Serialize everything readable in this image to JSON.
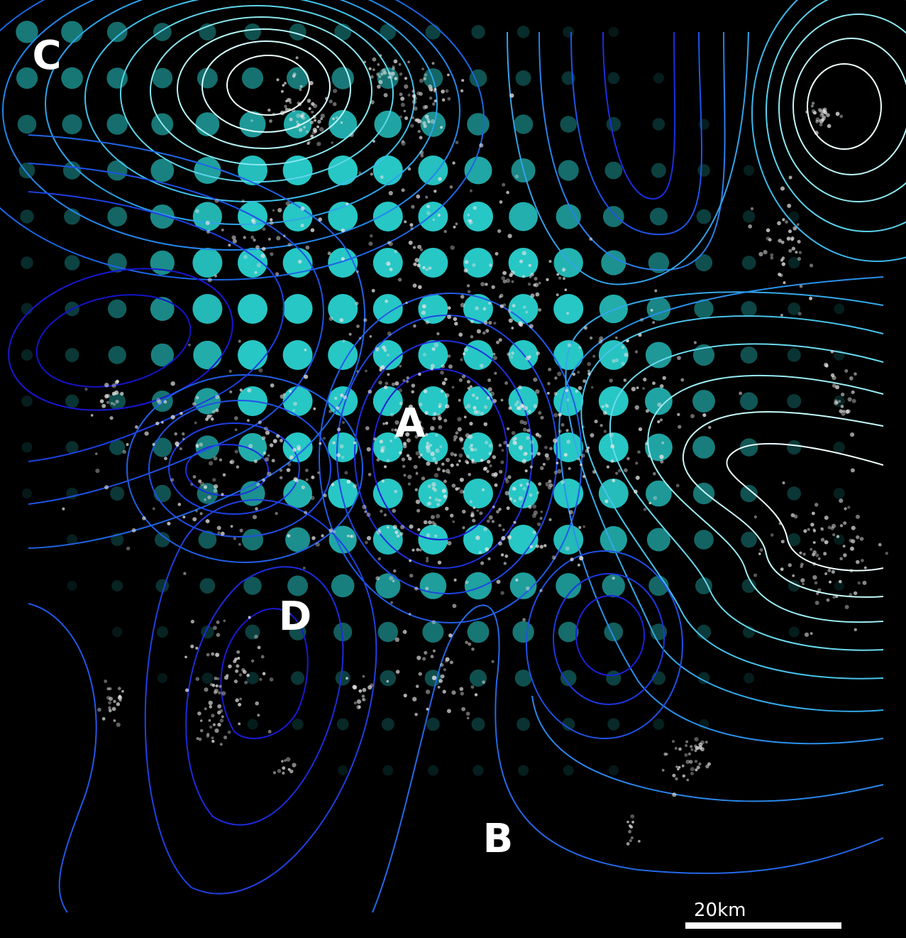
{
  "map": {
    "labels": {
      "A": "A",
      "B": "B",
      "C": "C",
      "D": "D"
    },
    "scale_bar": {
      "label": "20km"
    },
    "colors": {
      "background": "#000000",
      "grid_dot": "#2ad8d6",
      "cluster_point": "#e6e6e6",
      "contour_low": "#1a1ad9",
      "contour_mid": "#1f6fe6",
      "contour_high": "#3ad8e8",
      "contour_peak": "#e8ffff"
    }
  }
}
